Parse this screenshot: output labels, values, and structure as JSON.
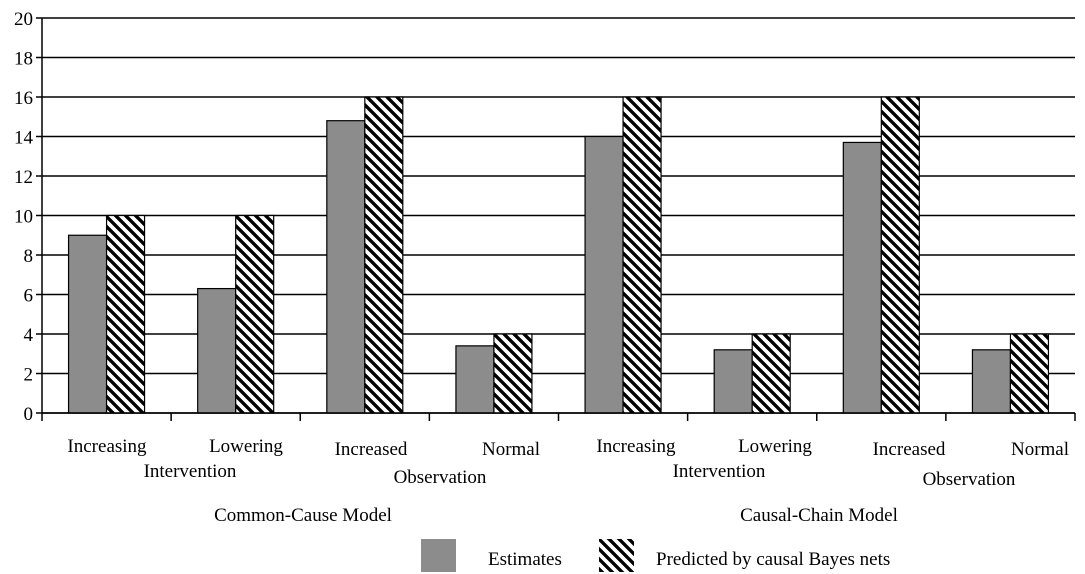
{
  "chart_data": {
    "type": "bar",
    "ylim": [
      0,
      20
    ],
    "yticks": [
      0,
      2,
      4,
      6,
      8,
      10,
      12,
      14,
      16,
      18,
      20
    ],
    "grid": true,
    "legend_position": "bottom",
    "categories": [
      "Common-Cause Increasing Intervention",
      "Common-Cause Lowering Intervention",
      "Common-Cause Increased Observation",
      "Common-Cause Normal Observation",
      "Causal-Chain Increasing Intervention",
      "Causal-Chain Lowering Intervention",
      "Causal-Chain Increased Observation",
      "Causal-Chain Normal Observation"
    ],
    "series": [
      {
        "name": "Estimates",
        "color": "#8c8c8c",
        "values": [
          9.0,
          6.3,
          14.8,
          3.4,
          14.0,
          3.2,
          13.7,
          3.2
        ]
      },
      {
        "name": "Predicted by causal Bayes nets",
        "pattern": "diagonal-hatch",
        "values": [
          10,
          10,
          16,
          4,
          16,
          4,
          16,
          4
        ]
      }
    ],
    "category_labels": [
      {
        "line1": "Increasing",
        "line2": "Intervention"
      },
      {
        "line1": "Lowering",
        "line2": ""
      },
      {
        "line1": "Increased",
        "line2": "Observation"
      },
      {
        "line1": "Normal",
        "line2": ""
      },
      {
        "line1": "Increasing",
        "line2": "Intervention"
      },
      {
        "line1": "Lowering",
        "line2": ""
      },
      {
        "line1": "Increased",
        "line2": "Observation"
      },
      {
        "line1": "Normal",
        "line2": ""
      }
    ],
    "groups": [
      {
        "label": "Common-Cause Model"
      },
      {
        "label": "Causal-Chain Model"
      }
    ]
  }
}
